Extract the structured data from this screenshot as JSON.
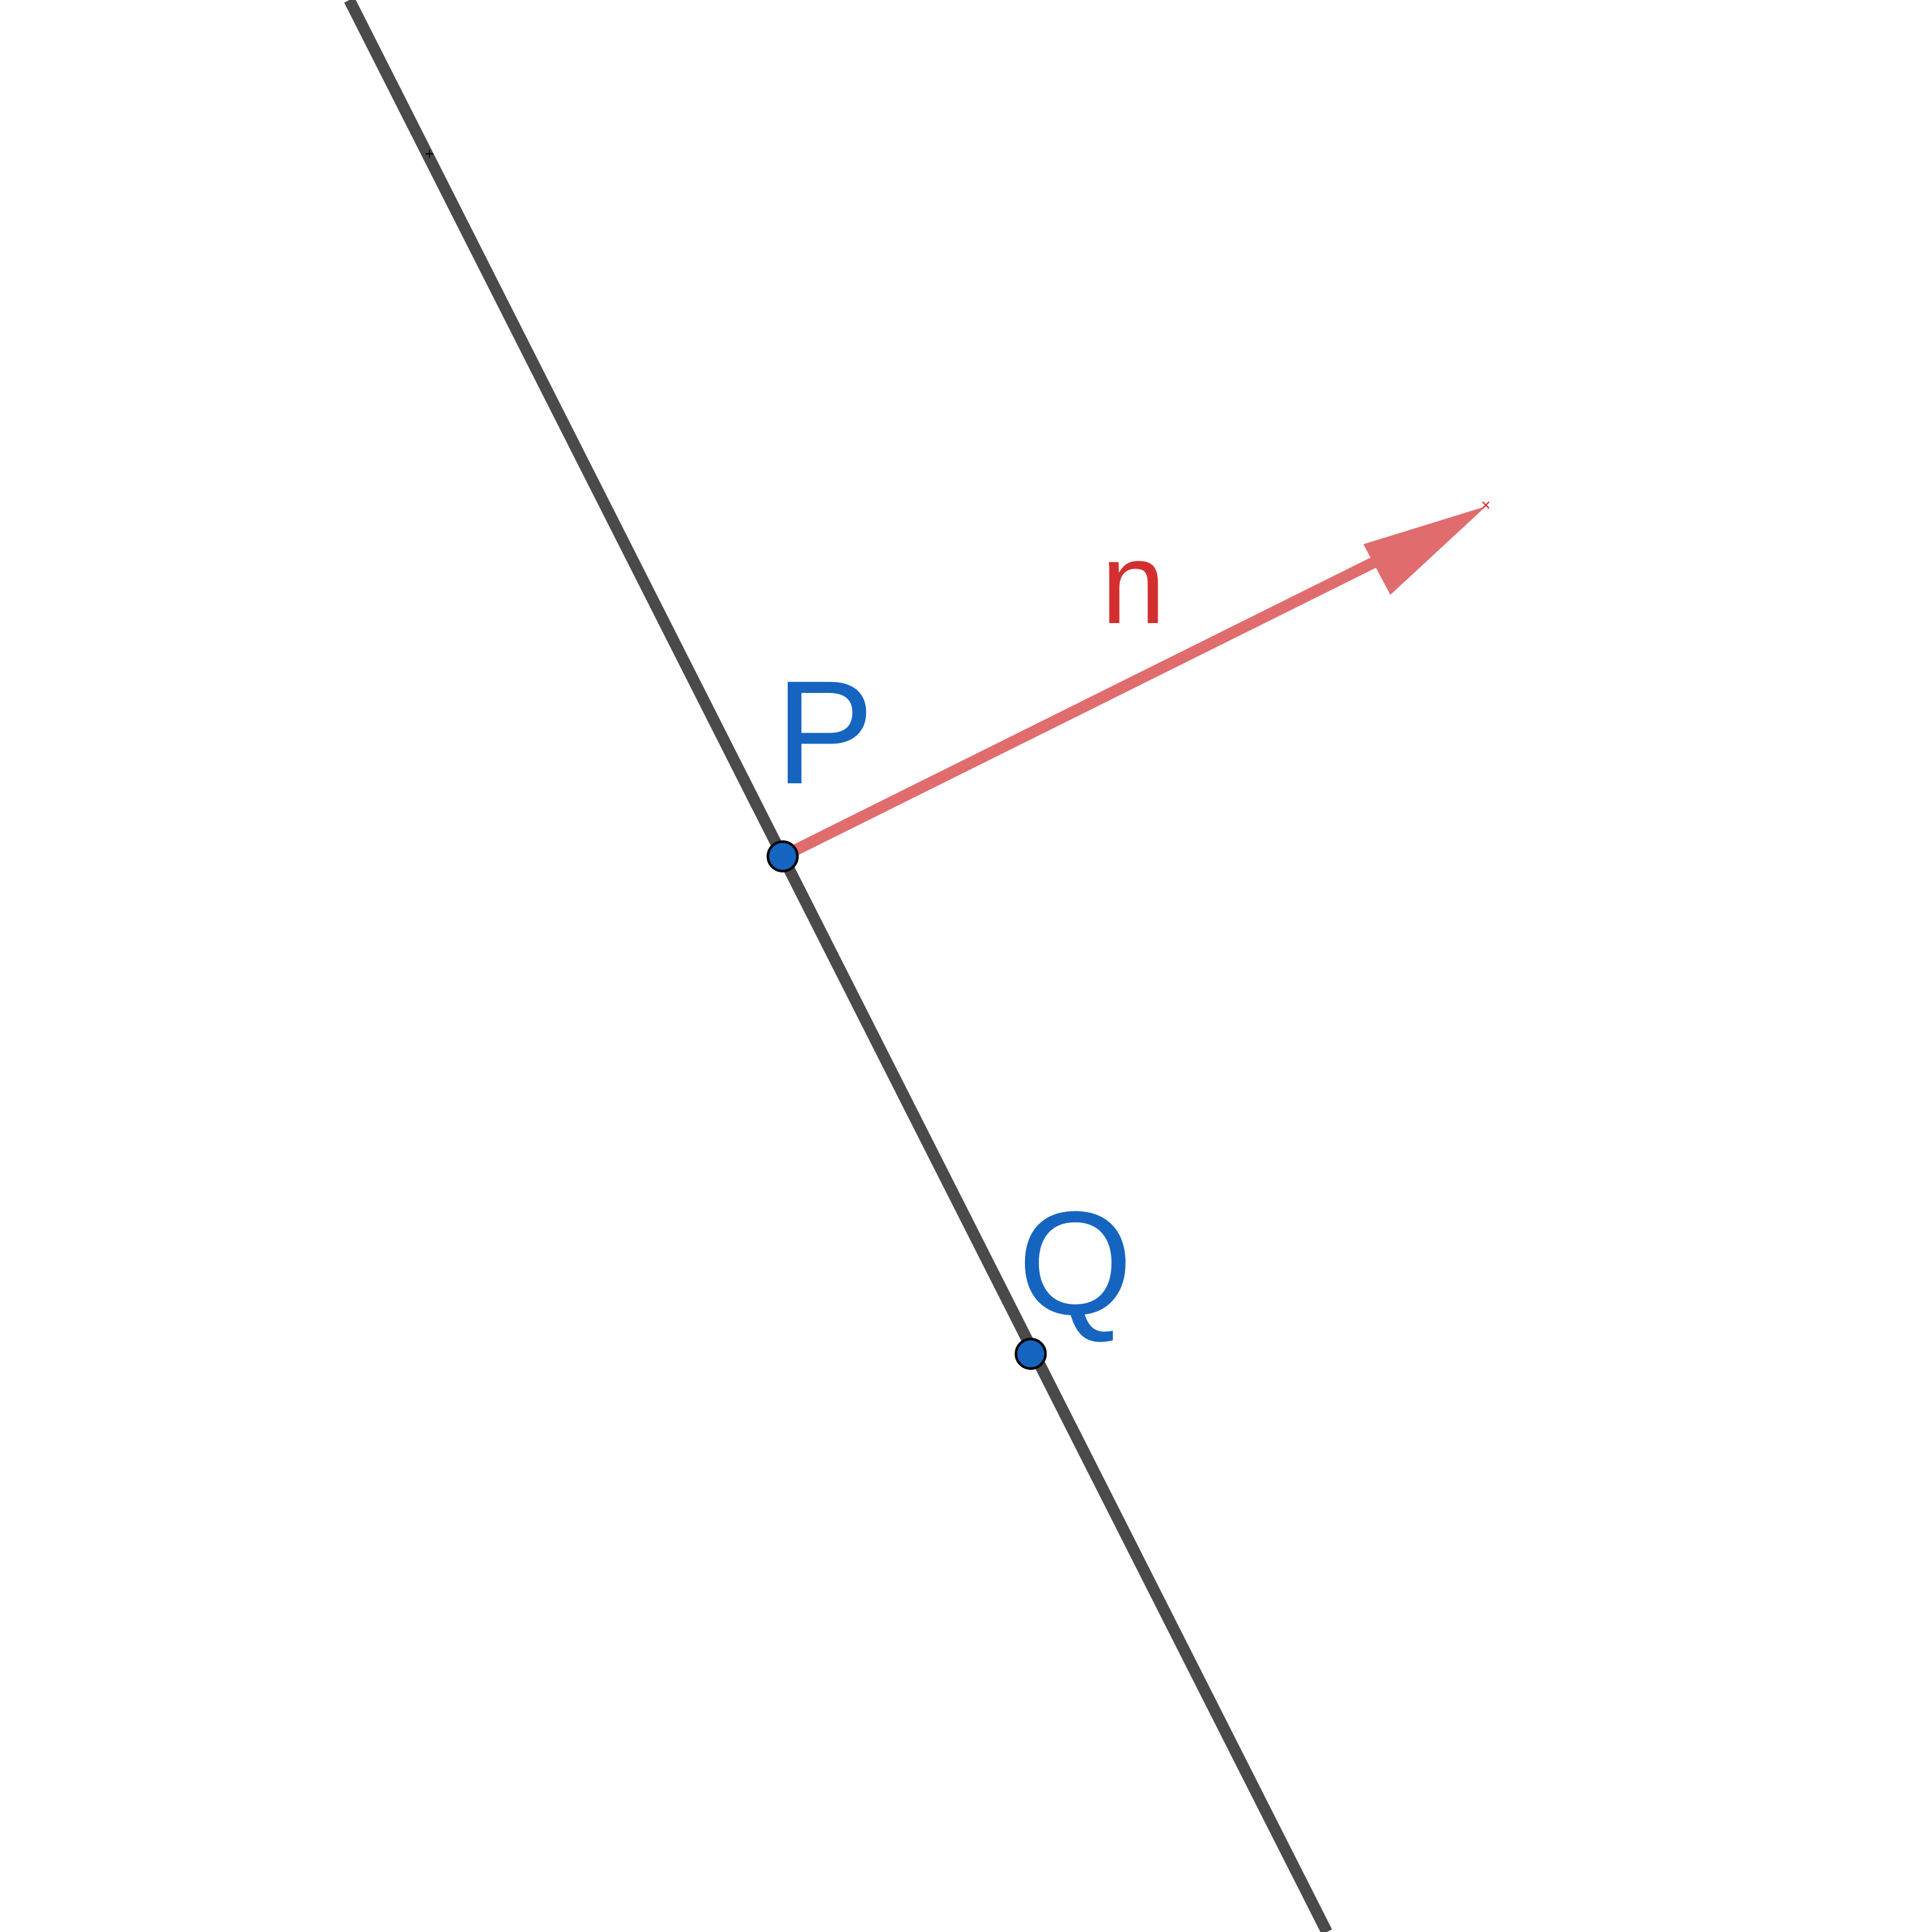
{
  "diagram": {
    "line": {
      "color": "#4a4a4a"
    },
    "normal_vector": {
      "label": "n",
      "color": "#e06c6e",
      "label_color": "#d32f2f"
    },
    "points": [
      {
        "id": "P",
        "label": "P",
        "color": "#1565c0"
      },
      {
        "id": "Q",
        "label": "Q",
        "color": "#1565c0"
      }
    ]
  }
}
